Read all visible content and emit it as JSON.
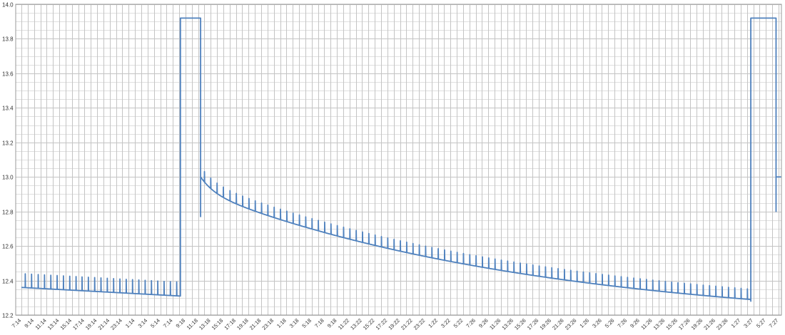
{
  "chart_data": {
    "type": "line",
    "title": "",
    "xlabel": "",
    "ylabel": "",
    "ylim": [
      12.2,
      14.0
    ],
    "y_ticks": [
      "12.2",
      "12.4",
      "12.6",
      "12.8",
      "13.0",
      "13.2",
      "13.4",
      "13.6",
      "13.8",
      "14.0"
    ],
    "grid": true,
    "legend": "none",
    "line_color": "#4f81bd",
    "x_labels": [
      "7:14",
      "9:14",
      "11:14",
      "13:14",
      "15:14",
      "17:14",
      "19:14",
      "21:14",
      "23:14",
      "1:14",
      "3:14",
      "5:14",
      "7:14",
      "9:18",
      "11:18",
      "13:18",
      "15:18",
      "17:18",
      "19:18",
      "21:18",
      "23:18",
      "1:18",
      "3:18",
      "5:18",
      "7:18",
      "9:18",
      "11:22",
      "13:22",
      "15:22",
      "17:22",
      "19:22",
      "21:22",
      "23:22",
      "1:22",
      "3:22",
      "5:22",
      "7:26",
      "9:26",
      "11:26",
      "13:26",
      "15:26",
      "17:26",
      "19:26",
      "21:26",
      "23:26",
      "1:26",
      "3:26",
      "5:26",
      "7:26",
      "9:26",
      "11:26",
      "13:26",
      "15:26",
      "17:26",
      "19:26",
      "21:26",
      "23:26",
      "1:27",
      "3:27",
      "5:27",
      "7:27"
    ],
    "series": [
      {
        "segments": [
          {
            "x": [
              0,
              12.6
            ],
            "y": [
              12.36,
              12.31
            ],
            "spike_every": 0.5,
            "spike_height": 0.08,
            "shape": "linear"
          },
          {
            "x": [
              12.6,
              12.6,
              14.2,
              14.2,
              14.2
            ],
            "y": [
              12.31,
              13.92,
              13.92,
              12.77,
              13.0
            ],
            "shape": "steps"
          },
          {
            "x": [
              14.2,
              57.8
            ],
            "y": [
              13.0,
              12.29
            ],
            "spike_every": 0.5,
            "spike_height": 0.06,
            "shape": "decay"
          },
          {
            "x": [
              57.8,
              57.8,
              59.8,
              59.8,
              59.8,
              60.2
            ],
            "y": [
              12.28,
              13.92,
              13.92,
              12.8,
              13.0,
              13.0
            ],
            "shape": "steps"
          }
        ]
      }
    ]
  }
}
